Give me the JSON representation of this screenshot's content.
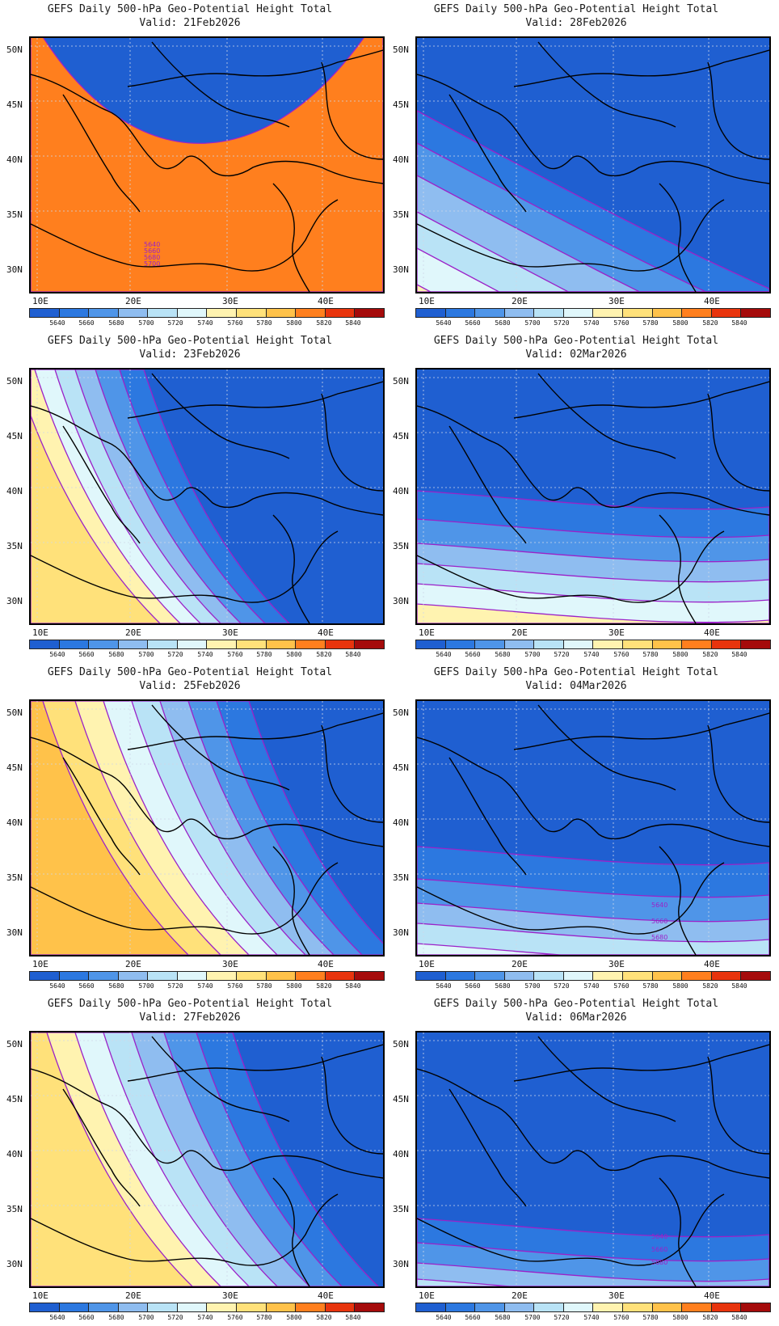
{
  "panel_title": "GEFS Daily 500-hPa Geo-Potential Height Total",
  "lat_labels": [
    "50N",
    "45N",
    "40N",
    "35N",
    "30N"
  ],
  "lon_labels": [
    "10E",
    "20E",
    "30E",
    "40E"
  ],
  "colorbar": {
    "labels": [
      "5640",
      "5660",
      "5680",
      "5700",
      "5720",
      "5740",
      "5760",
      "5780",
      "5800",
      "5820",
      "5840"
    ],
    "colors": [
      "#1f5fd1",
      "#2c78e0",
      "#4f95e8",
      "#8fbdf0",
      "#b9e3f6",
      "#e0f7fb",
      "#fff3b0",
      "#ffe17a",
      "#ffc24a",
      "#ff7f1e",
      "#e8340d",
      "#a50b0b"
    ]
  },
  "contour_color": "#9b22c8",
  "panels": [
    {
      "valid": "Valid: 21Feb2026",
      "contour_labels": [
        "5640",
        "5660",
        "5680",
        "5700"
      ]
    },
    {
      "valid": "Valid: 28Feb2026",
      "contour_labels": []
    },
    {
      "valid": "Valid: 23Feb2026",
      "contour_labels": []
    },
    {
      "valid": "Valid: 02Mar2026",
      "contour_labels": []
    },
    {
      "valid": "Valid: 25Feb2026",
      "contour_labels": []
    },
    {
      "valid": "Valid: 04Mar2026",
      "contour_labels": [
        "5640",
        "5660",
        "5680"
      ]
    },
    {
      "valid": "Valid: 27Feb2026",
      "contour_labels": []
    },
    {
      "valid": "Valid: 06Mar2026",
      "contour_labels": [
        "5640",
        "5660",
        "5680"
      ]
    }
  ]
}
